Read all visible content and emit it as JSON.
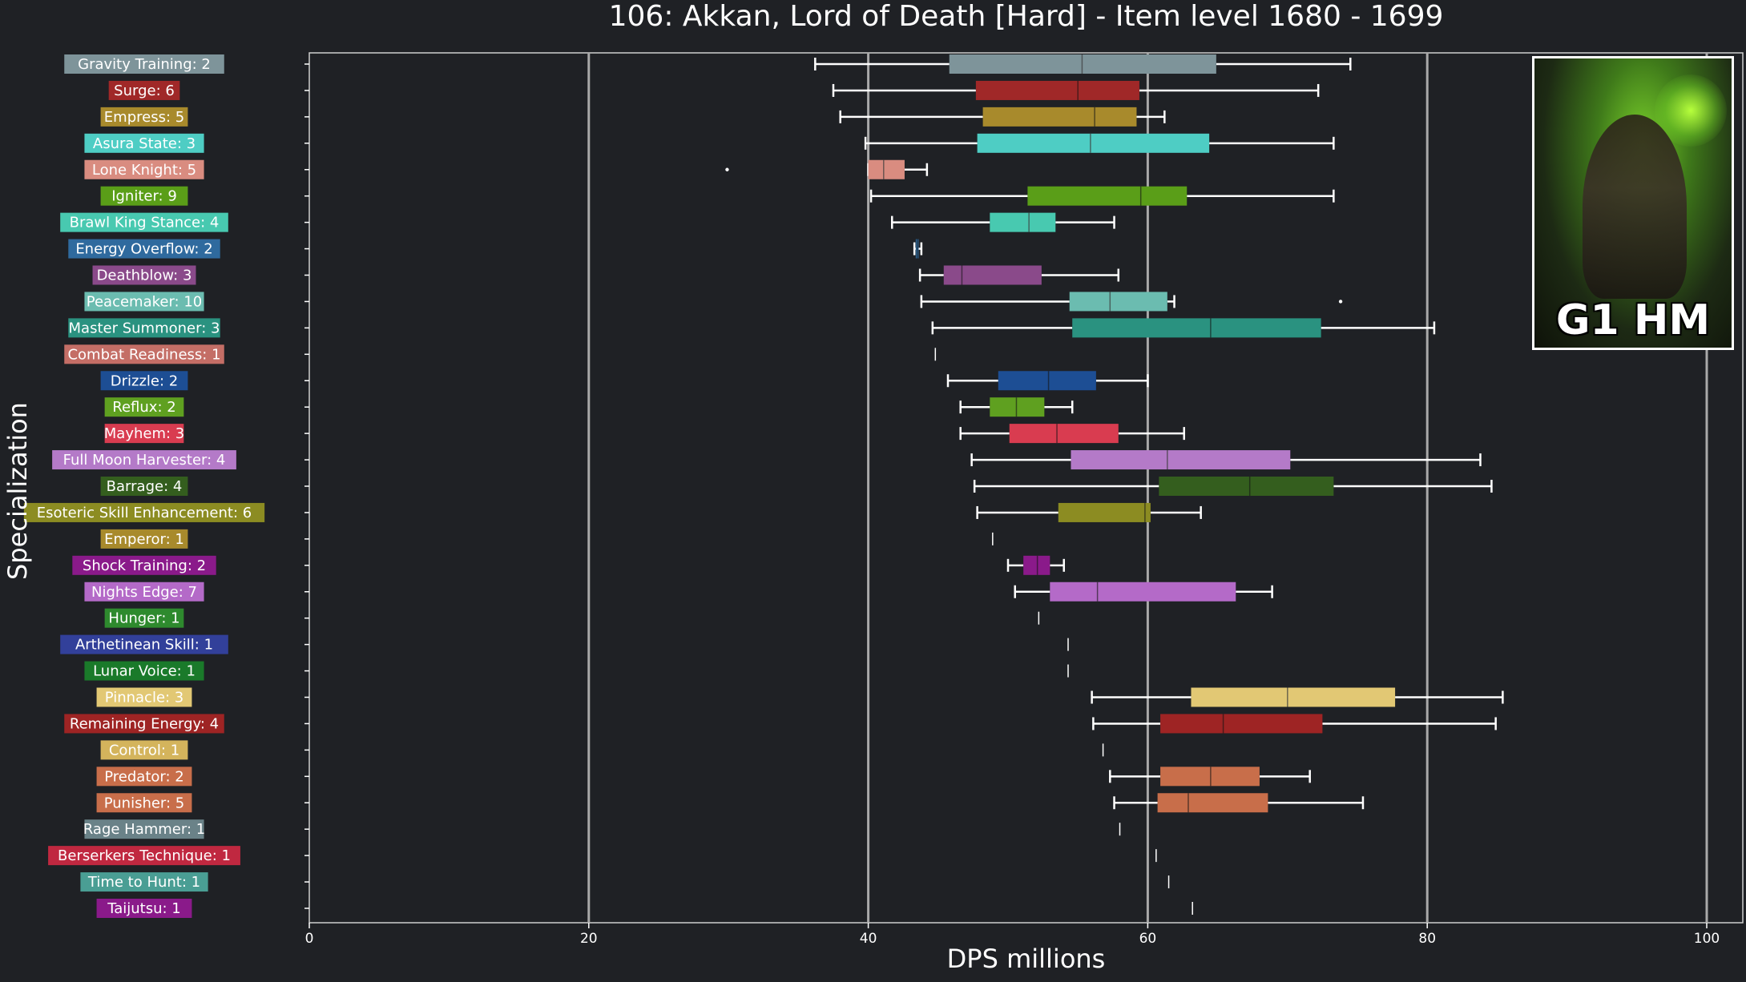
{
  "chart_data": {
    "type": "box",
    "title": "106: Akkan, Lord of Death [Hard] - Item level 1680 - 1699",
    "xlabel": "DPS millions",
    "ylabel": "Specialization",
    "xlim": [
      0,
      100
    ],
    "xticks": [
      "0",
      "20",
      "40",
      "60",
      "80",
      "100"
    ],
    "grid": "vertical",
    "inset_label": "G1 HM",
    "series": [
      {
        "label": "Gravity Training: 2",
        "color": "#7e949a",
        "min": 36.2,
        "q1": 45.8,
        "median": 55.3,
        "q3": 64.9,
        "max": 74.5,
        "outliers": []
      },
      {
        "label": "Surge: 6",
        "color": "#a02828",
        "min": 37.5,
        "q1": 47.7,
        "median": 55.0,
        "q3": 59.4,
        "max": 72.2,
        "outliers": []
      },
      {
        "label": "Empress: 5",
        "color": "#a88a2c",
        "min": 38.0,
        "q1": 48.2,
        "median": 56.2,
        "q3": 59.2,
        "max": 61.2,
        "outliers": []
      },
      {
        "label": "Asura State: 3",
        "color": "#4ecdc4",
        "min": 39.8,
        "q1": 47.8,
        "median": 55.9,
        "q3": 64.4,
        "max": 73.3,
        "outliers": []
      },
      {
        "label": "Lone Knight: 5",
        "color": "#d98c80",
        "min": 40.0,
        "q1": 40.0,
        "median": 41.1,
        "q3": 42.6,
        "max": 44.2,
        "outliers": [
          29.9
        ]
      },
      {
        "label": "Igniter: 9",
        "color": "#5a9e18",
        "min": 40.2,
        "q1": 51.4,
        "median": 59.5,
        "q3": 62.8,
        "max": 73.3,
        "outliers": []
      },
      {
        "label": "Brawl King Stance: 4",
        "color": "#48c9b0",
        "min": 41.7,
        "q1": 48.7,
        "median": 51.5,
        "q3": 53.4,
        "max": 57.6,
        "outliers": []
      },
      {
        "label": "Energy Overflow: 2",
        "color": "#2f6a9e",
        "min": 43.3,
        "q1": 43.4,
        "median": 43.5,
        "q3": 43.6,
        "max": 43.8,
        "outliers": []
      },
      {
        "label": "Deathblow: 3",
        "color": "#8a4a8a",
        "min": 43.7,
        "q1": 45.4,
        "median": 46.7,
        "q3": 52.4,
        "max": 57.9,
        "outliers": []
      },
      {
        "label": "Peacemaker: 10",
        "color": "#6bbcb0",
        "min": 43.8,
        "q1": 54.4,
        "median": 57.3,
        "q3": 61.4,
        "max": 61.9,
        "outliers": [
          73.8
        ]
      },
      {
        "label": "Master Summoner: 3",
        "color": "#2a9280",
        "min": 44.6,
        "q1": 54.6,
        "median": 64.5,
        "q3": 72.4,
        "max": 80.5,
        "outliers": []
      },
      {
        "label": "Combat Readiness: 1",
        "color": "#c46e66",
        "min": 44.8,
        "q1": 44.8,
        "median": 44.8,
        "q3": 44.8,
        "max": 44.8,
        "outliers": []
      },
      {
        "label": "Drizzle: 2",
        "color": "#1d4e94",
        "min": 45.7,
        "q1": 49.3,
        "median": 52.9,
        "q3": 56.3,
        "max": 60.0,
        "outliers": []
      },
      {
        "label": "Reflux: 2",
        "color": "#5fa020",
        "min": 46.6,
        "q1": 48.7,
        "median": 50.6,
        "q3": 52.6,
        "max": 54.6,
        "outliers": []
      },
      {
        "label": "Mayhem: 3",
        "color": "#d93c50",
        "min": 46.6,
        "q1": 50.1,
        "median": 53.5,
        "q3": 57.9,
        "max": 62.6,
        "outliers": []
      },
      {
        "label": "Full Moon Harvester: 4",
        "color": "#b47ac8",
        "min": 47.4,
        "q1": 54.5,
        "median": 61.4,
        "q3": 70.2,
        "max": 83.8,
        "outliers": []
      },
      {
        "label": "Barrage: 4",
        "color": "#345e1e",
        "min": 47.6,
        "q1": 60.8,
        "median": 67.3,
        "q3": 73.3,
        "max": 84.6,
        "outliers": []
      },
      {
        "label": "Esoteric Skill Enhancement: 6",
        "color": "#8c8c22",
        "min": 47.8,
        "q1": 53.6,
        "median": 59.8,
        "q3": 60.2,
        "max": 63.8,
        "outliers": []
      },
      {
        "label": "Emperor: 1",
        "color": "#a88a2c",
        "min": 48.9,
        "q1": 48.9,
        "median": 48.9,
        "q3": 48.9,
        "max": 48.9,
        "outliers": []
      },
      {
        "label": "Shock Training: 2",
        "color": "#8a1a8a",
        "min": 50.0,
        "q1": 51.1,
        "median": 52.1,
        "q3": 53.0,
        "max": 54.0,
        "outliers": []
      },
      {
        "label": "Nights Edge: 7",
        "color": "#b46ac8",
        "min": 50.5,
        "q1": 53.0,
        "median": 56.4,
        "q3": 66.3,
        "max": 68.9,
        "outliers": []
      },
      {
        "label": "Hunger: 1",
        "color": "#2e8a2e",
        "min": 52.2,
        "q1": 52.2,
        "median": 52.2,
        "q3": 52.2,
        "max": 52.2,
        "outliers": []
      },
      {
        "label": "Arthetinean Skill: 1",
        "color": "#32409a",
        "min": 54.3,
        "q1": 54.3,
        "median": 54.3,
        "q3": 54.3,
        "max": 54.3,
        "outliers": []
      },
      {
        "label": "Lunar Voice: 1",
        "color": "#1a7a2a",
        "min": 54.3,
        "q1": 54.3,
        "median": 54.3,
        "q3": 54.3,
        "max": 54.3,
        "outliers": []
      },
      {
        "label": "Pinnacle: 3",
        "color": "#e2c874",
        "min": 56.0,
        "q1": 63.1,
        "median": 70.0,
        "q3": 77.7,
        "max": 85.4,
        "outliers": []
      },
      {
        "label": "Remaining Energy: 4",
        "color": "#9e2424",
        "min": 56.1,
        "q1": 60.9,
        "median": 65.4,
        "q3": 72.5,
        "max": 84.9,
        "outliers": []
      },
      {
        "label": "Control: 1",
        "color": "#d4b45c",
        "min": 56.8,
        "q1": 56.8,
        "median": 56.8,
        "q3": 56.8,
        "max": 56.8,
        "outliers": []
      },
      {
        "label": "Predator: 2",
        "color": "#c86e4a",
        "min": 57.3,
        "q1": 60.9,
        "median": 64.5,
        "q3": 68.0,
        "max": 71.6,
        "outliers": []
      },
      {
        "label": "Punisher: 5",
        "color": "#c86e4a",
        "min": 57.6,
        "q1": 60.7,
        "median": 62.9,
        "q3": 68.6,
        "max": 75.4,
        "outliers": []
      },
      {
        "label": "Rage Hammer: 1",
        "color": "#6a8288",
        "min": 58.0,
        "q1": 58.0,
        "median": 58.0,
        "q3": 58.0,
        "max": 58.0,
        "outliers": []
      },
      {
        "label": "Berserkers Technique: 1",
        "color": "#c02840",
        "min": 60.6,
        "q1": 60.6,
        "median": 60.6,
        "q3": 60.6,
        "max": 60.6,
        "outliers": []
      },
      {
        "label": "Time to Hunt: 1",
        "color": "#4a9e94",
        "min": 61.5,
        "q1": 61.5,
        "median": 61.5,
        "q3": 61.5,
        "max": 61.5,
        "outliers": []
      },
      {
        "label": "Taijutsu: 1",
        "color": "#8a1a8a",
        "min": 63.2,
        "q1": 63.2,
        "median": 63.2,
        "q3": 63.2,
        "max": 63.2,
        "outliers": []
      }
    ]
  }
}
